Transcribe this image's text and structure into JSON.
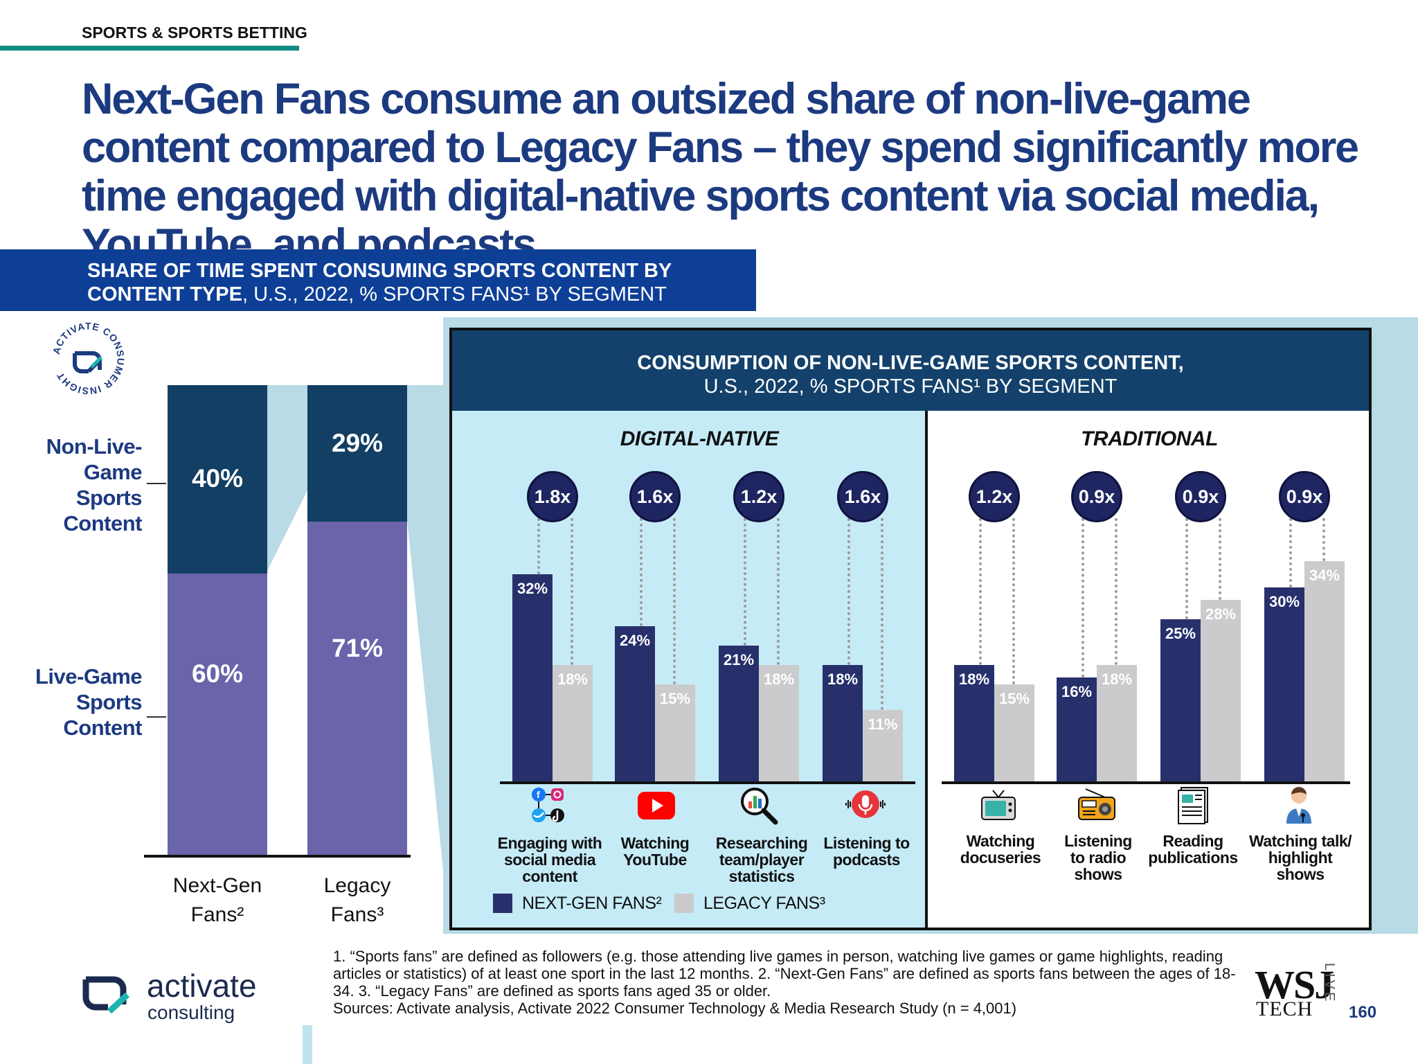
{
  "section_tag": "SPORTS & SPORTS BETTING",
  "headline": "Next-Gen Fans consume an outsized share of non-live-game content compared to Legacy Fans – they spend significantly more time engaged with digital-native sports content via social media, YouTube, and podcasts",
  "subhead": {
    "bold": "SHARE OF TIME SPENT CONSUMING SPORTS CONTENT BY CONTENT TYPE",
    "rest": ", U.S., 2022, % SPORTS FANS¹ BY SEGMENT"
  },
  "seal_text": "ACTIVATE CONSUMER INSIGHT",
  "panel": {
    "title_bold": "CONSUMPTION OF NON-LIVE-GAME SPORTS CONTENT,",
    "title_rest": "U.S., 2022, % SPORTS FANS¹ BY SEGMENT",
    "digital_label": "DIGITAL-NATIVE",
    "traditional_label": "TRADITIONAL"
  },
  "legend": {
    "ng": "NEXT-GEN FANS²",
    "lg": "LEGACY FANS³"
  },
  "chart_data": [
    {
      "type": "bar",
      "stacked": true,
      "categories": [
        "Next-Gen Fans²",
        "Legacy Fans³"
      ],
      "series": [
        {
          "name": "Non-Live-Game Sports Content",
          "values": [
            40,
            29
          ],
          "labels": [
            "40%",
            "29%"
          ],
          "color": "#123f63"
        },
        {
          "name": "Live-Game Sports Content",
          "values": [
            60,
            71
          ],
          "labels": [
            "60%",
            "71%"
          ],
          "color": "#6a64ab"
        }
      ],
      "ylim": [
        0,
        100
      ]
    },
    {
      "type": "bar",
      "title": "CONSUMPTION OF NON-LIVE-GAME SPORTS CONTENT, U.S., 2022, % SPORTS FANS¹ BY SEGMENT",
      "groups": [
        "DIGITAL-NATIVE",
        "TRADITIONAL"
      ],
      "categories": [
        "Engaging with social media content",
        "Watching YouTube",
        "Researching team/player statistics",
        "Listening to podcasts",
        "Watching docuseries",
        "Listening to radio shows",
        "Reading publications",
        "Watching talk/ highlight shows"
      ],
      "category_group": [
        "DIGITAL-NATIVE",
        "DIGITAL-NATIVE",
        "DIGITAL-NATIVE",
        "DIGITAL-NATIVE",
        "TRADITIONAL",
        "TRADITIONAL",
        "TRADITIONAL",
        "TRADITIONAL"
      ],
      "series": [
        {
          "name": "NEXT-GEN FANS²",
          "values": [
            32,
            24,
            21,
            18,
            18,
            16,
            25,
            30
          ],
          "labels": [
            "32%",
            "24%",
            "21%",
            "18%",
            "18%",
            "16%",
            "25%",
            "30%"
          ],
          "color": "#27306b"
        },
        {
          "name": "LEGACY FANS³",
          "values": [
            18,
            15,
            18,
            11,
            15,
            18,
            28,
            34
          ],
          "labels": [
            "18%",
            "15%",
            "18%",
            "11%",
            "15%",
            "18%",
            "28%",
            "34%"
          ],
          "color": "#cbcbcd"
        }
      ],
      "multipliers": [
        "1.8x",
        "1.6x",
        "1.2x",
        "1.6x",
        "1.2x",
        "0.9x",
        "0.9x",
        "0.9x"
      ],
      "icons": [
        "social-media-icon",
        "youtube-icon",
        "statistics-magnifier-icon",
        "podcast-microphone-icon",
        "tv-icon",
        "radio-icon",
        "publication-icon",
        "presenter-icon"
      ],
      "ylim": [
        0,
        40
      ]
    }
  ],
  "left_labels": {
    "non_live": "Non-Live-Game Sports Content",
    "live": "Live-Game Sports Content",
    "cat1_line1": "Next-Gen",
    "cat1_line2": "Fans²",
    "cat2_line1": "Legacy",
    "cat2_line2": "Fans³"
  },
  "footnote": {
    "line1": "1. “Sports fans” are defined as followers (e.g. those attending live games in person, watching live games or game highlights, reading articles or statistics) of at least one sport in the last 12 months.  2. “Next-Gen Fans” are defined as sports fans between the ages of 18-34.  3. “Legacy Fans” are defined as sports fans aged 35 or older.",
    "sources": "Sources: Activate analysis, Activate 2022 Consumer Technology & Media Research Study (n = 4,001)"
  },
  "logo": {
    "name": "activate",
    "sub": "consulting"
  },
  "wsj": {
    "top": "WSJ",
    "bottom": "TECH",
    "live": "LIVE"
  },
  "page_number": "160",
  "colors": {
    "navy": "#123f63",
    "purple": "#6a64ab",
    "ng_bar": "#27306b",
    "lg_bar": "#cbcbcd",
    "title_blue": "#1c3a80",
    "teal": "#128a82"
  }
}
